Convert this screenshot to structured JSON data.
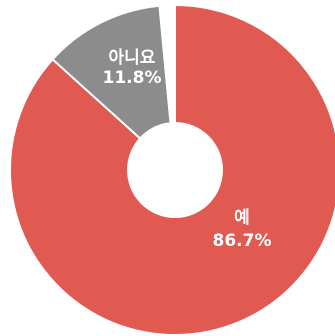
{
  "chart_data": {
    "type": "pie",
    "variant": "donut",
    "slices": [
      {
        "label": "예",
        "value": 86.7,
        "value_label": "86.7%",
        "color": "#e05a52"
      },
      {
        "label": "아니요",
        "value": 11.8,
        "value_label": "11.8%",
        "color": "#8c8c8c"
      },
      {
        "label": "",
        "value": 1.5,
        "value_label": "",
        "color": "#ffffff"
      }
    ],
    "start": "top",
    "direction": "clockwise",
    "slice_border_color": "#ffffff",
    "legend": "none"
  }
}
